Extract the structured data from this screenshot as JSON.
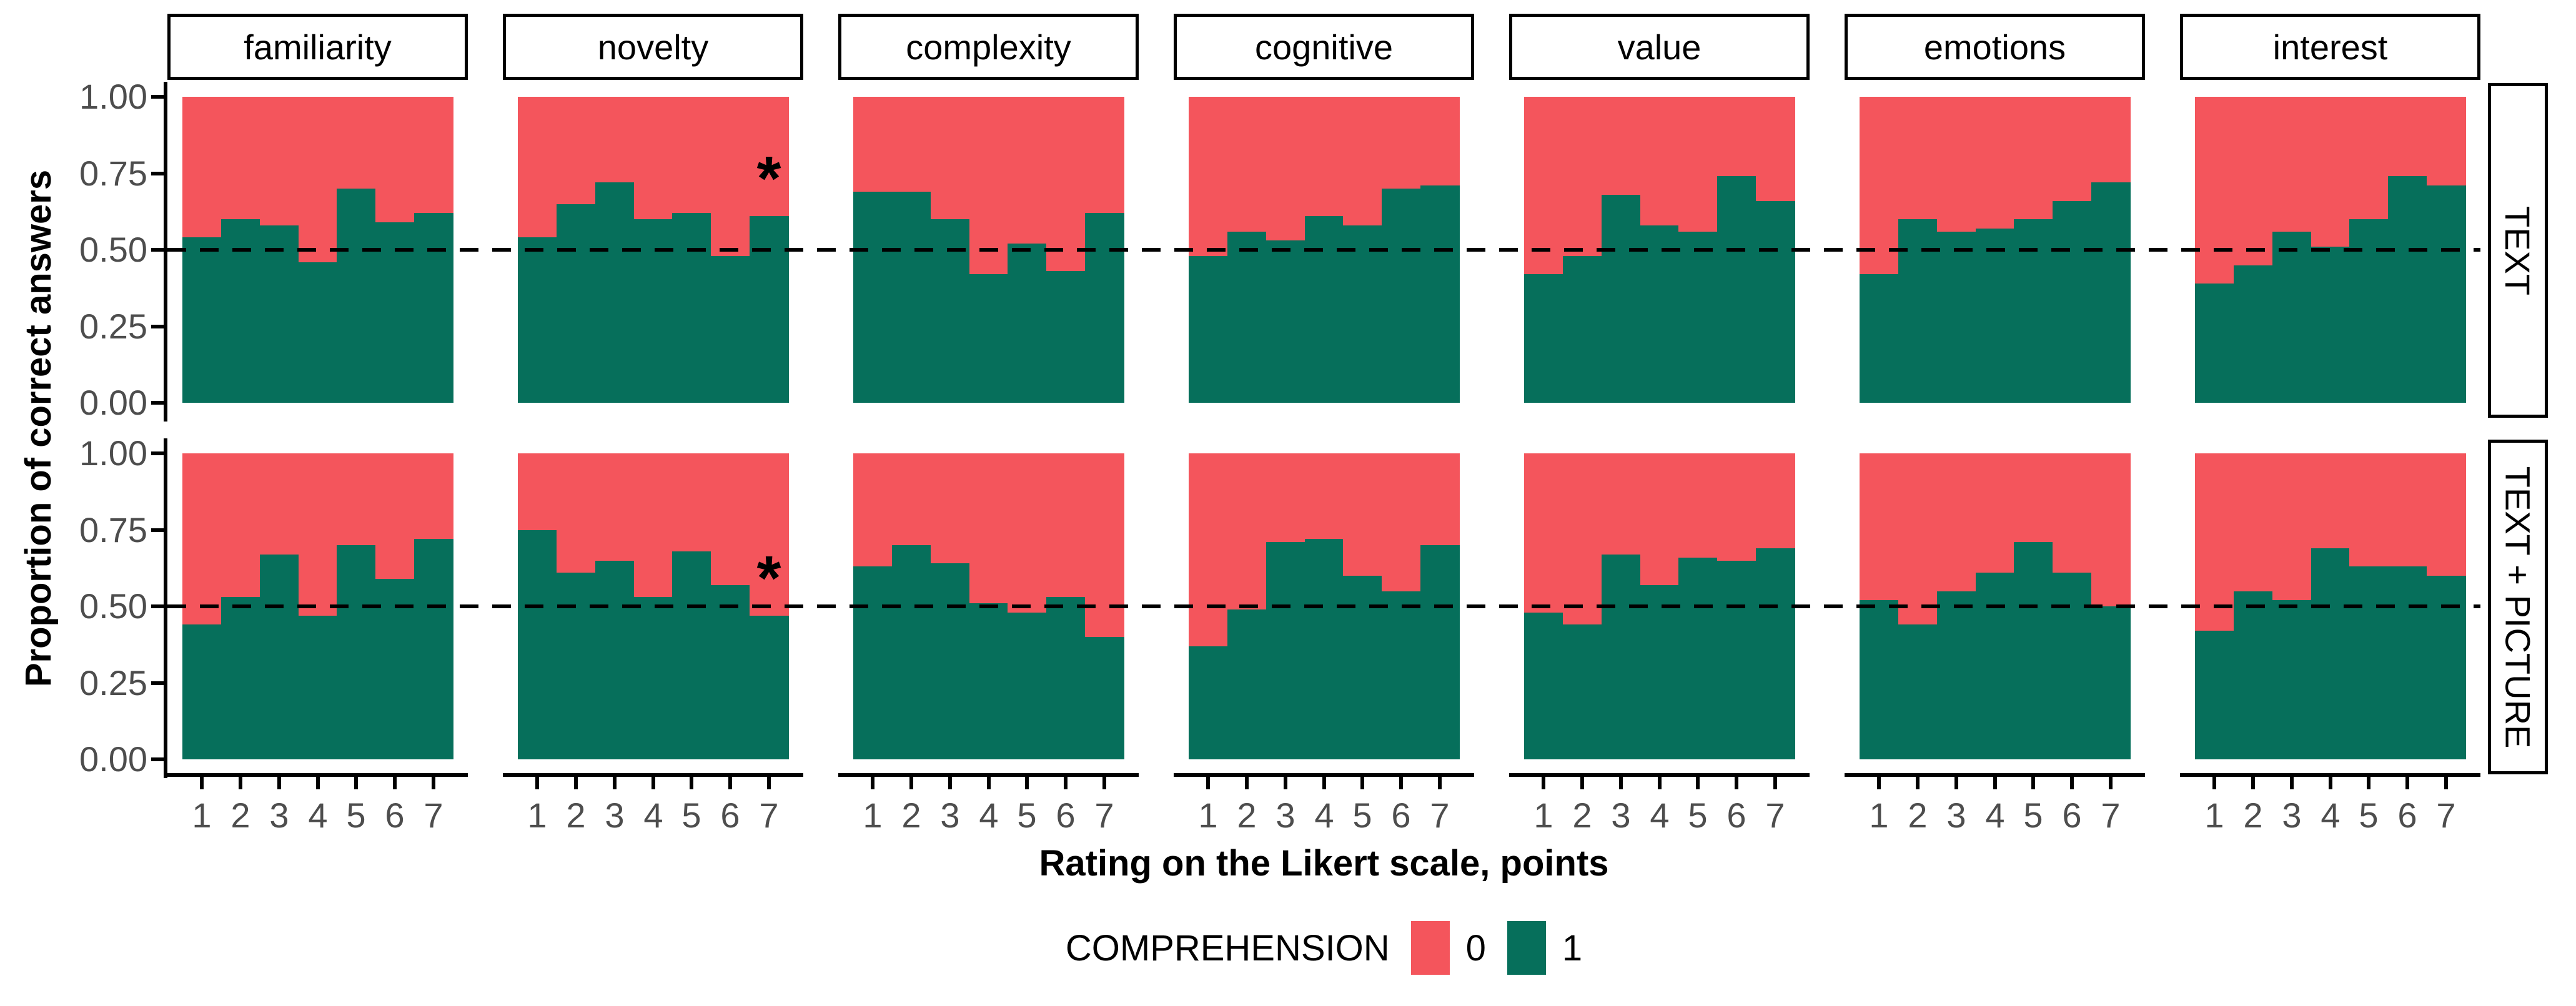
{
  "chart_data": {
    "type": "bar",
    "variant": "stacked-proportion-faceted",
    "xlabel": "Rating on the Likert scale, points",
    "ylabel": "Proportion of correct answers",
    "x_tick_labels": [
      "1",
      "2",
      "3",
      "4",
      "5",
      "6",
      "7"
    ],
    "y_tick_labels": [
      "1.00",
      "0.75",
      "0.50",
      "0.25",
      "0.00"
    ],
    "ylim": [
      0,
      1
    ],
    "reference_line": 0.5,
    "facet_cols": [
      "familiarity",
      "novelty",
      "complexity",
      "cognitive",
      "value",
      "emotions",
      "interest"
    ],
    "facet_rows": [
      "TEXT",
      "TEXT + PICTURE"
    ],
    "legend": {
      "title": "COMPREHENSION",
      "series": [
        {
          "name": "0",
          "color": "#f4555c"
        },
        {
          "name": "1",
          "color": "#066f5b"
        }
      ]
    },
    "proportion_correct_by_row": {
      "TEXT": {
        "familiarity": [
          0.54,
          0.6,
          0.58,
          0.46,
          0.7,
          0.59,
          0.62
        ],
        "novelty": [
          0.54,
          0.65,
          0.72,
          0.6,
          0.62,
          0.48,
          0.61
        ],
        "complexity": [
          0.69,
          0.69,
          0.6,
          0.42,
          0.52,
          0.43,
          0.62
        ],
        "cognitive": [
          0.48,
          0.56,
          0.53,
          0.61,
          0.58,
          0.7,
          0.71
        ],
        "value": [
          0.42,
          0.48,
          0.68,
          0.58,
          0.56,
          0.74,
          0.66
        ],
        "emotions": [
          0.42,
          0.6,
          0.56,
          0.57,
          0.6,
          0.66,
          0.72
        ],
        "interest": [
          0.39,
          0.45,
          0.56,
          0.51,
          0.6,
          0.74,
          0.71
        ]
      },
      "TEXT + PICTURE": {
        "familiarity": [
          0.44,
          0.53,
          0.67,
          0.47,
          0.7,
          0.59,
          0.72
        ],
        "novelty": [
          0.75,
          0.61,
          0.65,
          0.53,
          0.68,
          0.57,
          0.47
        ],
        "complexity": [
          0.63,
          0.7,
          0.64,
          0.51,
          0.48,
          0.53,
          0.4
        ],
        "cognitive": [
          0.37,
          0.49,
          0.71,
          0.72,
          0.6,
          0.55,
          0.7
        ],
        "value": [
          0.48,
          0.44,
          0.67,
          0.57,
          0.66,
          0.65,
          0.69
        ],
        "emotions": [
          0.52,
          0.44,
          0.55,
          0.61,
          0.71,
          0.61,
          0.5
        ],
        "interest": [
          0.42,
          0.55,
          0.52,
          0.69,
          0.63,
          0.63,
          0.6
        ]
      }
    },
    "annotations": [
      {
        "facet_row": "TEXT",
        "facet_col": "novelty",
        "x": 7,
        "text": "*"
      },
      {
        "facet_row": "TEXT + PICTURE",
        "facet_col": "novelty",
        "x": 7,
        "text": "*"
      }
    ],
    "colors": {
      "incorrect_0": "#f4555c",
      "correct_1": "#066f5b",
      "tick_label": "#4d4d4d",
      "axis": "#000000"
    }
  }
}
